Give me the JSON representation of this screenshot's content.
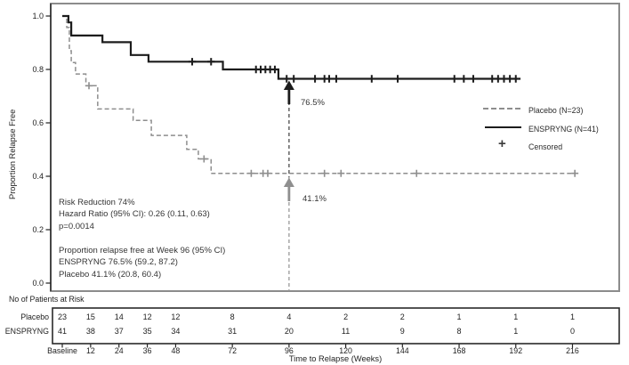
{
  "figure": {
    "background": "#ffffff",
    "frame_color": "#8c8c8c",
    "axis_color": "#222222"
  },
  "chart_data": {
    "type": "line",
    "subtype": "kaplan_meier_step",
    "title": "",
    "xlabel": "Time to Relapse (Weeks)",
    "ylabel": "Proportion Relapse Free",
    "xlim": [
      0,
      236
    ],
    "ylim": [
      0.0,
      1.0
    ],
    "grid": false,
    "yticks": [
      "1.0",
      "0.8",
      "0.6",
      "0.4",
      "0.2",
      "0.0"
    ],
    "ytick_values": [
      1.0,
      0.8,
      0.6,
      0.4,
      0.2,
      0.0
    ],
    "xtick_weeks": [
      0,
      12,
      24,
      36,
      48,
      72,
      96,
      120,
      144,
      168,
      192,
      216
    ],
    "xtick_labels": [
      "Baseline",
      "12",
      "24",
      "36",
      "48",
      "72",
      "96",
      "120",
      "144",
      "168",
      "192",
      "216"
    ],
    "reference_week": 96,
    "series": [
      {
        "name": "Placebo (N=23)",
        "color": "#8e8e8e",
        "style": "dashed",
        "steps": [
          [
            0,
            1.0
          ],
          [
            1.9,
            0.957
          ],
          [
            3,
            0.87
          ],
          [
            3.8,
            0.826
          ],
          [
            5.6,
            0.783
          ],
          [
            10,
            0.739
          ],
          [
            15,
            0.652
          ],
          [
            30,
            0.609
          ],
          [
            37.7,
            0.553
          ],
          [
            52.7,
            0.501
          ],
          [
            57.6,
            0.465
          ],
          [
            63,
            0.411
          ]
        ],
        "end_week": 218,
        "censored": [
          [
            11.3,
            0.739
          ],
          [
            60,
            0.465
          ],
          [
            80,
            0.411
          ],
          [
            85,
            0.411
          ],
          [
            87,
            0.411
          ],
          [
            111,
            0.411
          ],
          [
            118,
            0.411
          ],
          [
            150,
            0.411
          ],
          [
            217,
            0.411
          ]
        ]
      },
      {
        "name": "ENSPRYNG (N=41)",
        "color": "#1c1c1c",
        "style": "solid",
        "steps": [
          [
            0,
            1.0
          ],
          [
            2.6,
            0.976
          ],
          [
            3.8,
            0.927
          ],
          [
            17,
            0.902
          ],
          [
            29,
            0.854
          ],
          [
            36.5,
            0.829
          ],
          [
            68,
            0.8
          ],
          [
            91.5,
            0.765
          ]
        ],
        "end_week": 194,
        "censored": [
          [
            55,
            0.829
          ],
          [
            63,
            0.829
          ],
          [
            82,
            0.8
          ],
          [
            84,
            0.8
          ],
          [
            86,
            0.8
          ],
          [
            88,
            0.8
          ],
          [
            90,
            0.8
          ],
          [
            95,
            0.765
          ],
          [
            98,
            0.765
          ],
          [
            107,
            0.765
          ],
          [
            111,
            0.765
          ],
          [
            113,
            0.765
          ],
          [
            116,
            0.765
          ],
          [
            131,
            0.765
          ],
          [
            142,
            0.765
          ],
          [
            166,
            0.765
          ],
          [
            170,
            0.765
          ],
          [
            174,
            0.765
          ],
          [
            182,
            0.765
          ],
          [
            184.5,
            0.765
          ],
          [
            187,
            0.765
          ],
          [
            189.5,
            0.765
          ],
          [
            192,
            0.765
          ]
        ]
      }
    ]
  },
  "legend": {
    "censored_marker": "+",
    "items": [
      {
        "sample": "dashed-gray-line",
        "label": "Placebo (N=23)"
      },
      {
        "sample": "solid-black-line",
        "label": "ENSPRYNG (N=41)"
      },
      {
        "sample": "plus-marker",
        "label": "Censored"
      }
    ]
  },
  "annotations": {
    "stats_lines_1": [
      "Risk Reduction 74%",
      "Hazard Ratio (95% CI): 0.26 (0.11, 0.63)",
      "p=0.0014"
    ],
    "stats_lines_2": [
      "Proportion relapse free at Week 96 (95% CI)",
      "ENSPRYNG 76.5% (59.2, 87.2)",
      "Placebo 41.1% (20.8, 60.4)"
    ],
    "enspryng_pct_label": "76.5%",
    "placebo_pct_label": "41.1%"
  },
  "risk_table": {
    "title": "No of Patients at Risk",
    "x_axis_title": "Time to Relapse (Weeks)",
    "x_labels": [
      "Baseline",
      "12",
      "24",
      "36",
      "48",
      "72",
      "96",
      "120",
      "144",
      "168",
      "192",
      "216"
    ],
    "rows": [
      {
        "label": "Placebo",
        "values": [
          "23",
          "15",
          "14",
          "12",
          "12",
          "8",
          "4",
          "2",
          "2",
          "1",
          "1",
          "1"
        ]
      },
      {
        "label": "ENSPRYNG",
        "values": [
          "41",
          "38",
          "37",
          "35",
          "34",
          "31",
          "20",
          "11",
          "9",
          "8",
          "1",
          "0"
        ]
      }
    ]
  }
}
